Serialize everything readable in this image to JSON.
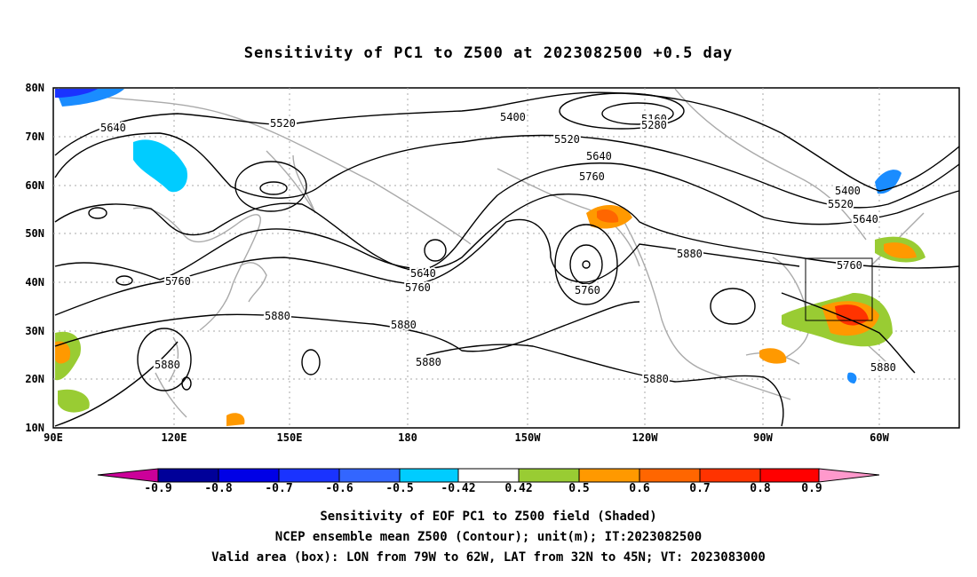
{
  "title": "Sensitivity of PC1 to Z500 at 2023082500 +0.5 day",
  "lat_labels": [
    "80N",
    "70N",
    "60N",
    "50N",
    "40N",
    "30N",
    "20N",
    "10N"
  ],
  "lon_labels": [
    "90E",
    "120E",
    "150E",
    "180",
    "150W",
    "120W",
    "90W",
    "60W"
  ],
  "contour_labels": [
    "5640",
    "5520",
    "5400",
    "5160",
    "5280",
    "5520",
    "5640",
    "5760",
    "5400",
    "5520",
    "5640",
    "5880",
    "5760",
    "5760",
    "5640",
    "5760",
    "5760",
    "5880",
    "5880",
    "5880",
    "5880",
    "5880",
    "5880"
  ],
  "colorbar": {
    "labels": [
      "-0.9",
      "-0.8",
      "-0.7",
      "-0.6",
      "-0.5",
      "-0.42",
      "0.42",
      "0.5",
      "0.6",
      "0.7",
      "0.8",
      "0.9"
    ],
    "colors": [
      "#000099",
      "#0000e6",
      "#1a33ff",
      "#3366ff",
      "#1a8cff",
      "#00ccff",
      "#ffffff",
      "#99cc33",
      "#ff9900",
      "#ff6600",
      "#ff3300",
      "#ff0000"
    ],
    "low_end": "#cc0099",
    "high_end": "#ff99cc"
  },
  "captions": {
    "line1": "Sensitivity of EOF PC1 to Z500 field (Shaded)",
    "line2": "NCEP ensemble mean Z500 (Contour); unit(m); IT:2023082500",
    "line3": "Valid area (box): LON from 79W to 62W, LAT from 32N to 45N; VT: 2023083000"
  }
}
